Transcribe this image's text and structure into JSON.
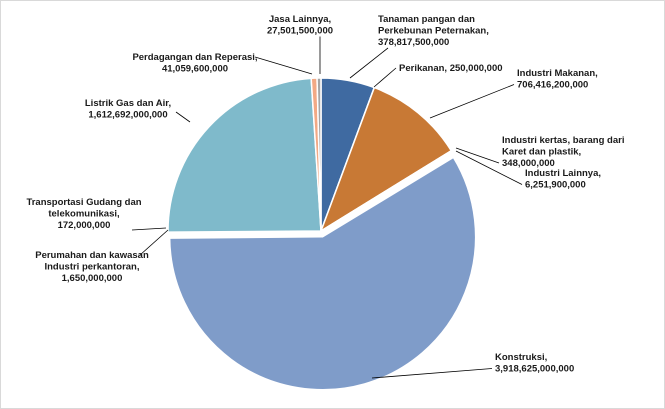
{
  "chart_data": {
    "type": "pie",
    "title": "",
    "legend": "none",
    "unit": "",
    "slices": [
      {
        "name": "Tanaman pangan dan Perkebunan Peternakan",
        "value": 378817500000,
        "value_label": "378,817,500,000",
        "color": "#3f6aa1"
      },
      {
        "name": "Perikanan",
        "value": 250000000,
        "value_label": "250,000,000",
        "color": "#bf504d"
      },
      {
        "name": "Industri Makanan",
        "value": 706416200000,
        "value_label": "706,416,200,000",
        "color": "#c87935"
      },
      {
        "name": "Industri kertas, barang dari Karet dan plastik",
        "value": 348000000,
        "value_label": "348,000,000",
        "color": "#9bbb59"
      },
      {
        "name": "Industri Lainnya",
        "value": 6251900000,
        "value_label": "6,251,900,000",
        "color": "#c7c7c7"
      },
      {
        "name": "Konstruksi",
        "value": 3918625000000,
        "value_label": "3,918,625,000,000",
        "color": "#7f9cc9"
      },
      {
        "name": "Perumahan dan kawasan Industri perkantoran",
        "value": 1650000000,
        "value_label": "1,650,000,000",
        "color": "#4bacc6"
      },
      {
        "name": "Transportasi Gudang dan telekomunikasi",
        "value": 172000000,
        "value_label": "172,000,000",
        "color": "#8064a2"
      },
      {
        "name": "Listrik Gas dan Air",
        "value": 1612692000000,
        "value_label": "1,612,692,000,000",
        "color": "#7fbacb"
      },
      {
        "name": "Perdagangan dan Reperasi",
        "value": 41059600000,
        "value_label": "41,059,600,000",
        "color": "#f2a985"
      },
      {
        "name": "Jasa Lainnya",
        "value": 27501500000,
        "value_label": "27,501,500,000",
        "color": "#a5a5a5"
      }
    ],
    "label_lines": [
      [
        "Tanaman pangan dan",
        "Perkebunan Peternakan,",
        "378,817,500,000"
      ],
      [
        "Perikanan,  250,000,000"
      ],
      [
        "Industri Makanan,",
        "706,416,200,000"
      ],
      [
        "Industri kertas, barang dari",
        "Karet dan plastik,",
        "348,000,000"
      ],
      [
        "Industri Lainnya,",
        "6,251,900,000"
      ],
      [
        "Konstruksi,",
        "3,918,625,000,000"
      ],
      [
        "Perumahan dan kawasan",
        "Industri perkantoran,",
        "1,650,000,000"
      ],
      [
        "Transportasi Gudang dan",
        "telekomunikasi,",
        "172,000,000"
      ],
      [
        "Listrik Gas dan Air,",
        "1,612,692,000,000"
      ],
      [
        "Perdagangan dan Reperasi,",
        "41,059,600,000"
      ],
      [
        "Jasa Lainnya,",
        "27,501,500,000"
      ]
    ]
  }
}
